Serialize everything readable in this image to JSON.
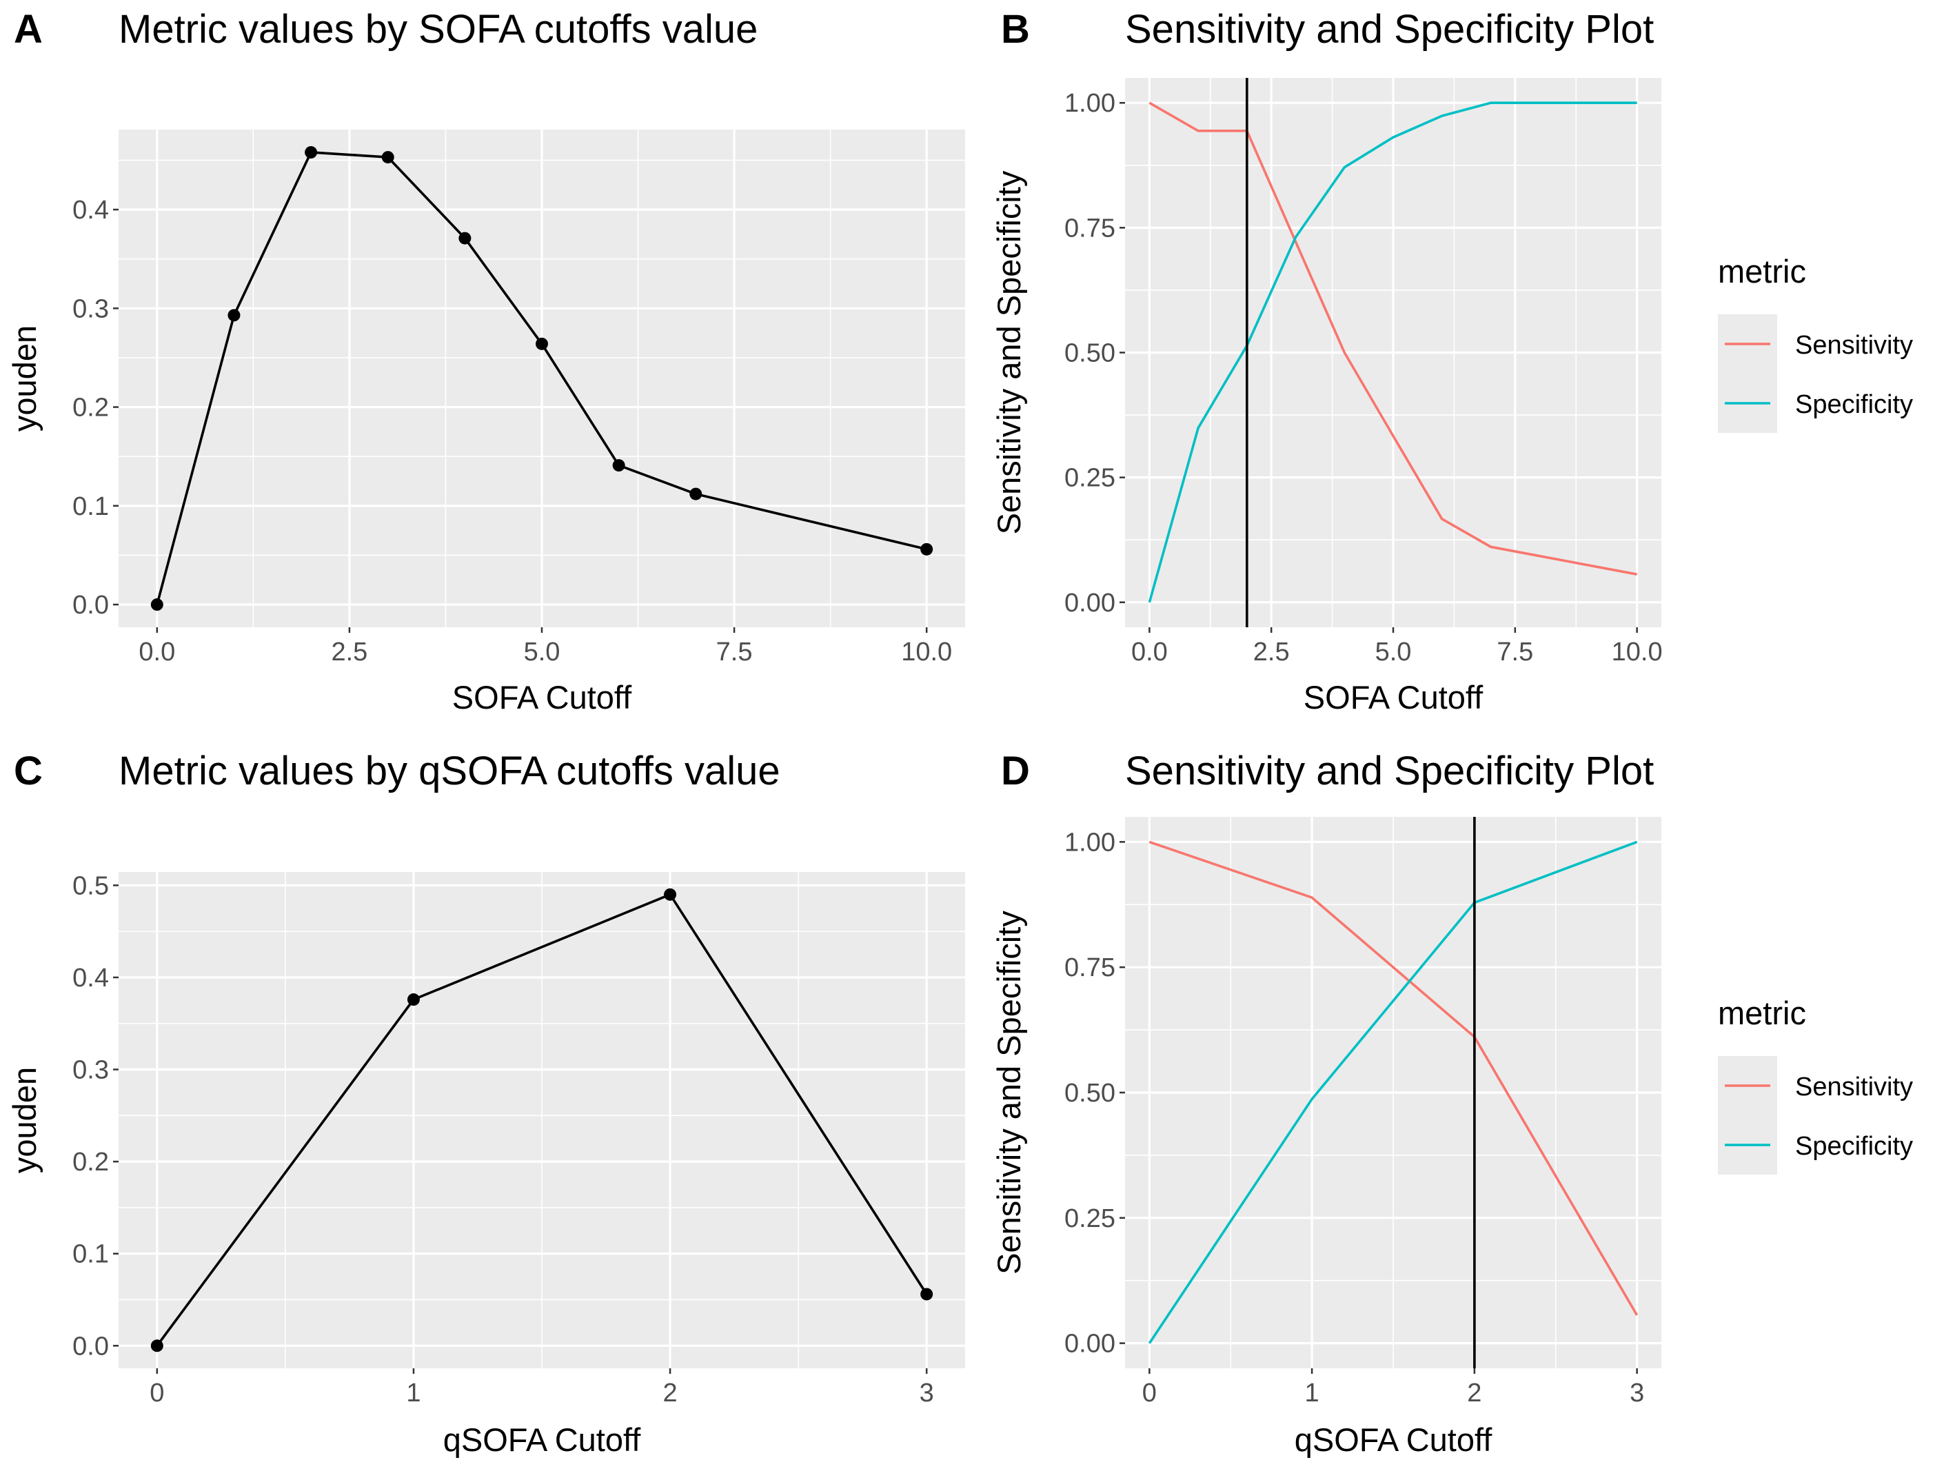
{
  "chart_data": [
    {
      "panel": "A",
      "type": "line",
      "title": "Metric values by SOFA cutoffs value",
      "xlabel": "SOFA Cutoff",
      "ylabel": "youden",
      "x": [
        0,
        1,
        2,
        3,
        4,
        5,
        6,
        7,
        10
      ],
      "series": [
        {
          "name": "youden",
          "values": [
            0.0,
            0.293,
            0.458,
            0.453,
            0.371,
            0.264,
            0.141,
            0.112,
            0.056
          ],
          "color": "#000000",
          "markers": true
        }
      ],
      "xlim": [
        -0.5,
        10.5
      ],
      "ylim": [
        -0.023,
        0.481
      ],
      "xticks": [
        0,
        2.5,
        5,
        7.5,
        10
      ],
      "xtick_labels": [
        "0.0",
        "2.5",
        "5.0",
        "7.5",
        "10.0"
      ],
      "yticks": [
        0,
        0.1,
        0.2,
        0.3,
        0.4
      ],
      "ytick_labels": [
        "0.0",
        "0.1",
        "0.2",
        "0.3",
        "0.4"
      ],
      "grid": true
    },
    {
      "panel": "B",
      "type": "line",
      "title": "Sensitivity and Specificity Plot",
      "xlabel": "SOFA Cutoff",
      "ylabel": "Sensitivity and Specificity",
      "x": [
        0,
        1,
        2,
        3,
        4,
        5,
        6,
        7,
        10
      ],
      "series": [
        {
          "name": "Sensitivity",
          "values": [
            1.0,
            0.944,
            0.944,
            0.722,
            0.5,
            0.333,
            0.167,
            0.111,
            0.056
          ],
          "color": "#F8766D",
          "markers": false
        },
        {
          "name": "Specificity",
          "values": [
            0.0,
            0.349,
            0.514,
            0.731,
            0.871,
            0.931,
            0.974,
            1.0,
            1.0
          ],
          "color": "#00BFC4",
          "markers": false
        }
      ],
      "vline": 2,
      "xlim": [
        -0.5,
        10.5
      ],
      "ylim": [
        -0.05,
        1.05
      ],
      "xticks": [
        0,
        2.5,
        5,
        7.5,
        10
      ],
      "xtick_labels": [
        "0.0",
        "2.5",
        "5.0",
        "7.5",
        "10.0"
      ],
      "yticks": [
        0,
        0.25,
        0.5,
        0.75,
        1.0
      ],
      "ytick_labels": [
        "0.00",
        "0.25",
        "0.50",
        "0.75",
        "1.00"
      ],
      "grid": true,
      "legend": {
        "title": "metric",
        "placement": "right"
      }
    },
    {
      "panel": "C",
      "type": "line",
      "title": "Metric values by qSOFA cutoffs value",
      "xlabel": "qSOFA Cutoff",
      "ylabel": "youden",
      "x": [
        0,
        1,
        2,
        3
      ],
      "series": [
        {
          "name": "youden",
          "values": [
            0.0,
            0.376,
            0.49,
            0.056
          ],
          "color": "#000000",
          "markers": true
        }
      ],
      "xlim": [
        -0.15,
        3.15
      ],
      "ylim": [
        -0.0245,
        0.5145
      ],
      "xticks": [
        0,
        1,
        2,
        3
      ],
      "xtick_labels": [
        "0",
        "1",
        "2",
        "3"
      ],
      "yticks": [
        0,
        0.1,
        0.2,
        0.3,
        0.4,
        0.5
      ],
      "ytick_labels": [
        "0.0",
        "0.1",
        "0.2",
        "0.3",
        "0.4",
        "0.5"
      ],
      "grid": true
    },
    {
      "panel": "D",
      "type": "line",
      "title": "Sensitivity and Specificity Plot",
      "xlabel": "qSOFA Cutoff",
      "ylabel": "Sensitivity and Specificity",
      "x": [
        0,
        1,
        2,
        3
      ],
      "series": [
        {
          "name": "Sensitivity",
          "values": [
            1.0,
            0.889,
            0.611,
            0.056
          ],
          "color": "#F8766D",
          "markers": false
        },
        {
          "name": "Specificity",
          "values": [
            0.0,
            0.487,
            0.879,
            1.0
          ],
          "color": "#00BFC4",
          "markers": false
        }
      ],
      "vline": 2,
      "xlim": [
        -0.15,
        3.15
      ],
      "ylim": [
        -0.05,
        1.05
      ],
      "xticks": [
        0,
        1,
        2,
        3
      ],
      "xtick_labels": [
        "0",
        "1",
        "2",
        "3"
      ],
      "yticks": [
        0,
        0.25,
        0.5,
        0.75,
        1.0
      ],
      "ytick_labels": [
        "0.00",
        "0.25",
        "0.50",
        "0.75",
        "1.00"
      ],
      "grid": true,
      "legend": {
        "title": "metric",
        "placement": "right"
      }
    }
  ]
}
